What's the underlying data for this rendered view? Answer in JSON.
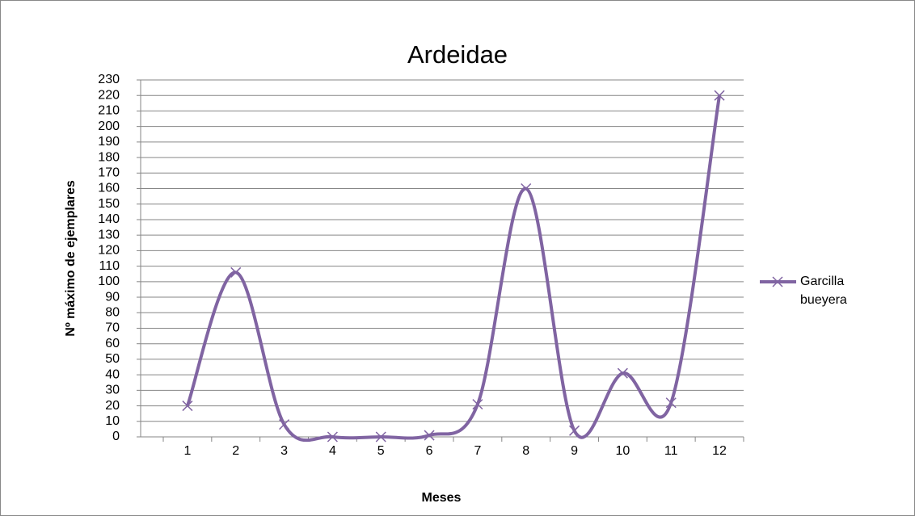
{
  "chart_data": {
    "type": "line",
    "title": "Ardeidae",
    "x_label": "Meses",
    "y_label": "Nº máximo de ejemplares",
    "categories": [
      "1",
      "2",
      "3",
      "4",
      "5",
      "6",
      "7",
      "8",
      "9",
      "10",
      "11",
      "12"
    ],
    "series": [
      {
        "name": "Garcilla bueyera",
        "color": "#8064a2",
        "values": [
          20,
          106,
          8,
          0,
          0,
          1,
          21,
          160,
          4,
          41,
          22,
          220
        ]
      }
    ],
    "ylim": [
      0,
      230
    ],
    "yticks": [
      0,
      10,
      20,
      30,
      40,
      50,
      60,
      70,
      80,
      90,
      100,
      110,
      120,
      130,
      140,
      150,
      160,
      170,
      180,
      190,
      200,
      210,
      220,
      230
    ],
    "grid": true,
    "smooth": true,
    "legend": "right"
  }
}
